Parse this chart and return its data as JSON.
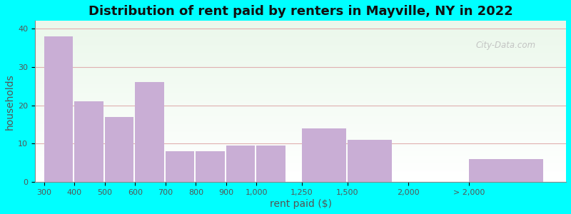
{
  "title": "Distribution of rent paid by renters in Mayville, NY in 2022",
  "xlabel": "rent paid ($)",
  "ylabel": "households",
  "bar_labels": [
    "300",
    "400",
    "500",
    "600",
    "700",
    "800",
    "900",
    "1,000",
    "1,250",
    "1,500",
    "2,000",
    "> 2,000"
  ],
  "bar_values": [
    38,
    21,
    17,
    26,
    8,
    8,
    9.5,
    9.5,
    14,
    11,
    0,
    6
  ],
  "bar_color": "#c9aed5",
  "outer_background": "#00ffff",
  "ylim": [
    0,
    42
  ],
  "yticks": [
    0,
    10,
    20,
    30,
    40
  ],
  "title_fontsize": 13,
  "axis_label_fontsize": 10,
  "tick_fontsize": 8,
  "bar_positions": [
    0,
    1,
    2,
    3,
    4,
    5,
    6,
    7,
    8.5,
    10,
    12,
    14
  ],
  "bar_widths": [
    1,
    1,
    1,
    1,
    1,
    1,
    1,
    1,
    1.5,
    1.5,
    1.0,
    2.5
  ],
  "bar_gap": 0.05,
  "xlim_left": -0.3,
  "xlim_right": 17.2,
  "watermark": "City-Data.com",
  "grid_color": "#e0b0b0",
  "spine_color": "#888888"
}
